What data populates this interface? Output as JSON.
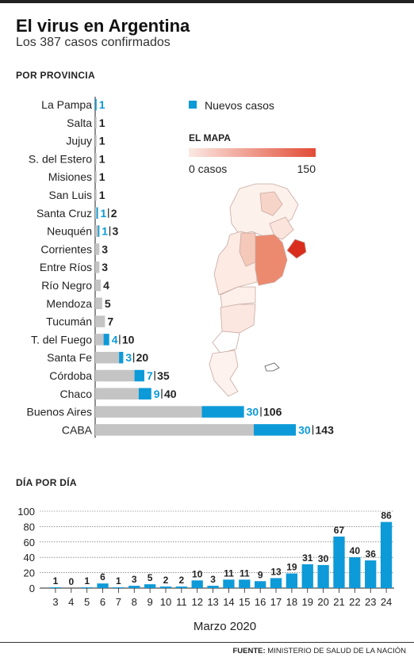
{
  "header": {
    "title": "El virus en Argentina",
    "subtitle": "Los 387 casos confirmados"
  },
  "colors": {
    "new_cases": "#0d9ad8",
    "prior_cases": "#c4c4c4",
    "map_low": "#fbe9e3",
    "map_high": "#e24b35",
    "text": "#222222"
  },
  "chart_data": [
    {
      "type": "bar",
      "orientation": "horizontal",
      "stacked": true,
      "title": "POR PROVINCIA",
      "legend": {
        "label": "Nuevos casos",
        "placement": "top-right"
      },
      "categories": [
        "La Pampa",
        "Salta",
        "Jujuy",
        "S. del Estero",
        "Misiones",
        "San Luis",
        "Santa Cruz",
        "Neuquén",
        "Corrientes",
        "Entre Ríos",
        "Río Negro",
        "Mendoza",
        "Tucumán",
        "T. del Fuego",
        "Santa Fe",
        "Córdoba",
        "Chaco",
        "Buenos Aires",
        "CABA"
      ],
      "series": [
        {
          "name": "Nuevos casos",
          "values": [
            1,
            0,
            0,
            0,
            0,
            0,
            1,
            1,
            0,
            0,
            0,
            0,
            0,
            4,
            3,
            7,
            9,
            30,
            30
          ]
        }
      ],
      "totals": [
        1,
        1,
        1,
        1,
        1,
        1,
        2,
        3,
        3,
        3,
        4,
        5,
        7,
        10,
        20,
        35,
        40,
        106,
        143
      ]
    },
    {
      "type": "bar",
      "title": "DÍA POR DÍA",
      "categories": [
        "3",
        "4",
        "5",
        "6",
        "7",
        "8",
        "9",
        "10",
        "11",
        "12",
        "13",
        "14",
        "15",
        "16",
        "17",
        "18",
        "19",
        "20",
        "21",
        "22",
        "23",
        "24"
      ],
      "values": [
        1,
        0,
        1,
        6,
        1,
        3,
        5,
        2,
        2,
        10,
        3,
        11,
        11,
        9,
        13,
        19,
        31,
        30,
        67,
        40,
        36,
        86
      ],
      "xlabel": "Marzo 2020",
      "ylabel": "",
      "ylim": [
        0,
        100
      ],
      "yticks": [
        0,
        20,
        40,
        60,
        80,
        100
      ],
      "grid": true
    }
  ],
  "map_legend": {
    "title": "EL MAPA",
    "min_label": "0 casos",
    "max_label": "150"
  },
  "footer": {
    "source_label": "FUENTE:",
    "source_text": "MINISTERIO DE SALUD DE LA NACIÓN"
  }
}
